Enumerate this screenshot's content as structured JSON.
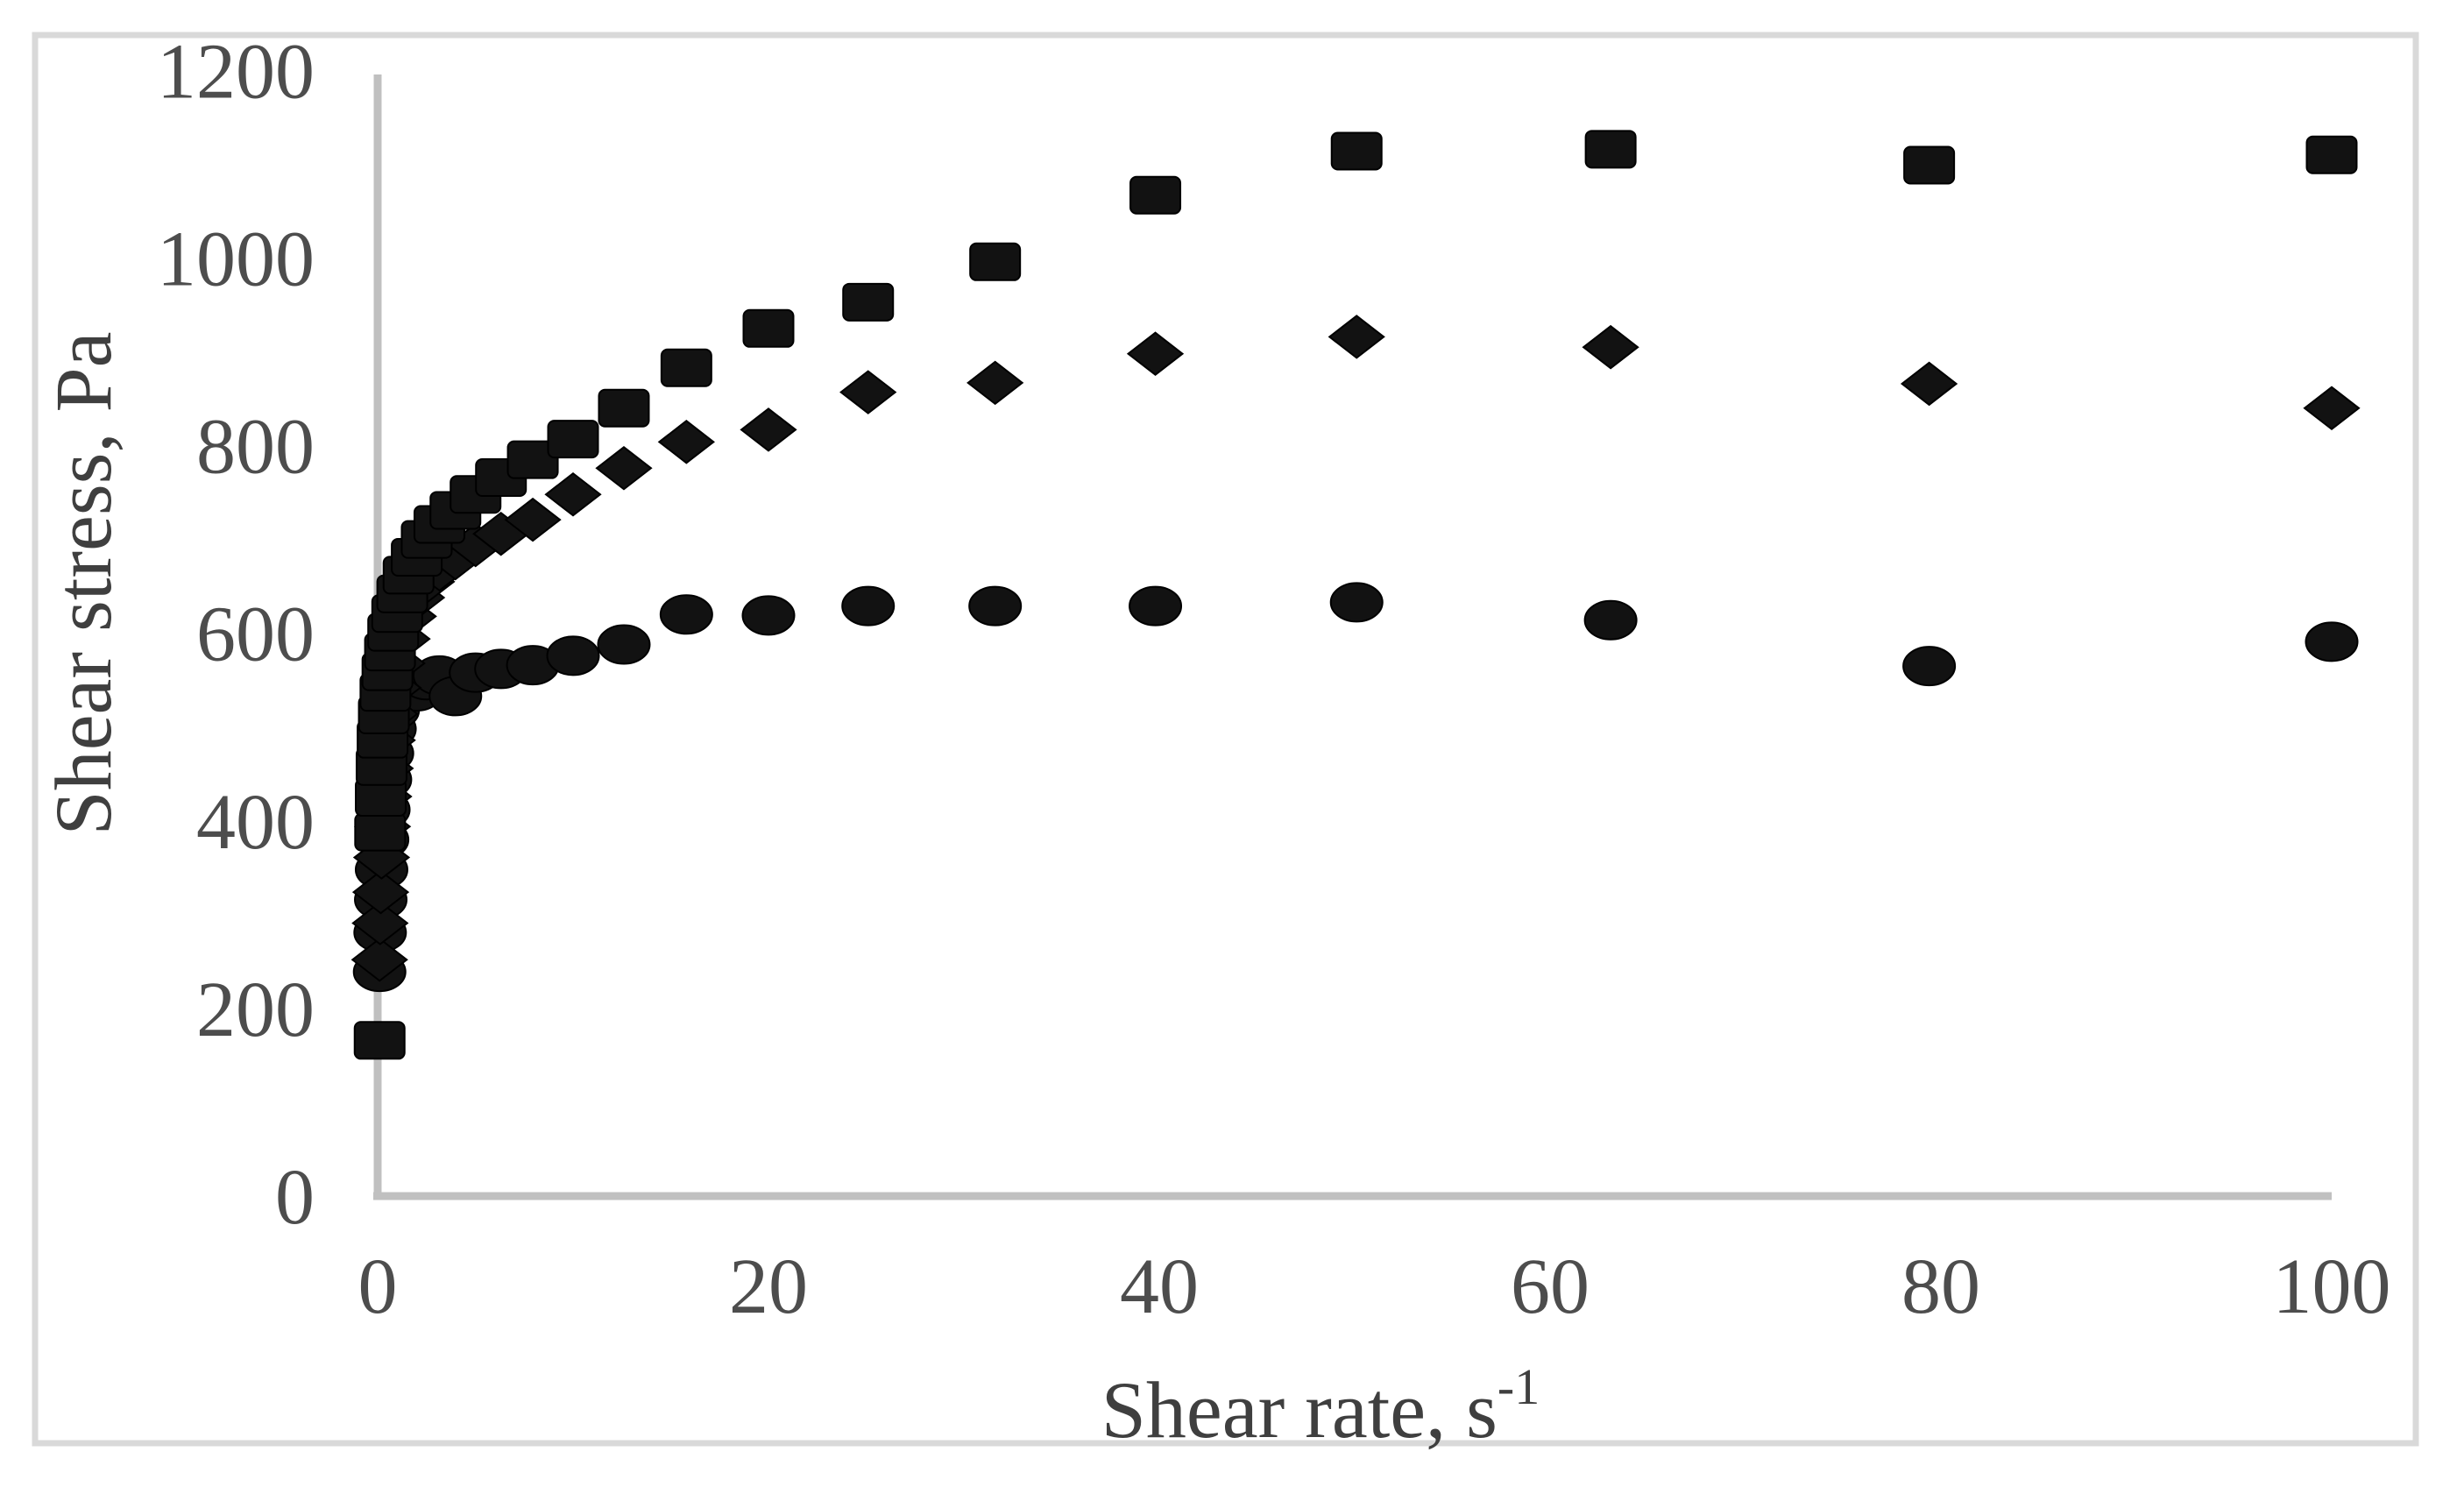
{
  "figure": {
    "background_color": "#ffffff",
    "border_color": "#d9d9d9",
    "axis_line_color": "#c0c0c0",
    "tick_text_color": "#4d4d4d",
    "title_text_color": "#3f3f3f",
    "marker_color": "#121212"
  },
  "chart_data": {
    "type": "scatter",
    "title": "",
    "xlabel": "Shear rate, s",
    "xlabel_superscript": "-1",
    "ylabel": "Shear stress, Pa",
    "xlim": [
      0,
      100
    ],
    "ylim": [
      0,
      1200
    ],
    "x_ticks": [
      0,
      20,
      40,
      60,
      80,
      100
    ],
    "y_ticks": [
      0,
      200,
      400,
      600,
      800,
      1000,
      1200
    ],
    "grid": false,
    "legend_position": "none",
    "x": [
      0.1,
      0.126,
      0.158,
      0.2,
      0.251,
      0.316,
      0.398,
      0.501,
      0.631,
      0.794,
      1,
      1.26,
      1.58,
      2,
      2.51,
      3.16,
      3.98,
      5.01,
      6.31,
      7.94,
      10,
      12.6,
      15.8,
      20,
      25.1,
      31.6,
      39.8,
      50.1,
      63.1,
      79.4,
      100
    ],
    "series": [
      {
        "name": "circles",
        "marker": "circle",
        "values": [
          239,
          281,
          316,
          348,
          380,
          412,
          444,
          472,
          498,
          518,
          532,
          540,
          546,
          538,
          550,
          555,
          533,
          558,
          562,
          566,
          576,
          588,
          620,
          619,
          629,
          629,
          629,
          633,
          614,
          565,
          591
        ]
      },
      {
        "name": "diamonds",
        "marker": "diamond",
        "values": [
          252,
          291,
          324,
          361,
          394,
          426,
          456,
          486,
          514,
          542,
          568,
          594,
          618,
          638,
          655,
          668,
          680,
          694,
          706,
          721,
          748,
          776,
          804,
          817,
          857,
          867,
          898,
          916,
          905,
          866,
          840
        ]
      },
      {
        "name": "squares",
        "marker": "square",
        "values": [
          166,
          388,
          425,
          458,
          487,
          513,
          537,
          559,
          580,
          601,
          621,
          642,
          662,
          681,
          700,
          716,
          731,
          748,
          766,
          785,
          807,
          840,
          883,
          925,
          953,
          996,
          1067,
          1114,
          1116,
          1099,
          1110
        ]
      }
    ]
  }
}
